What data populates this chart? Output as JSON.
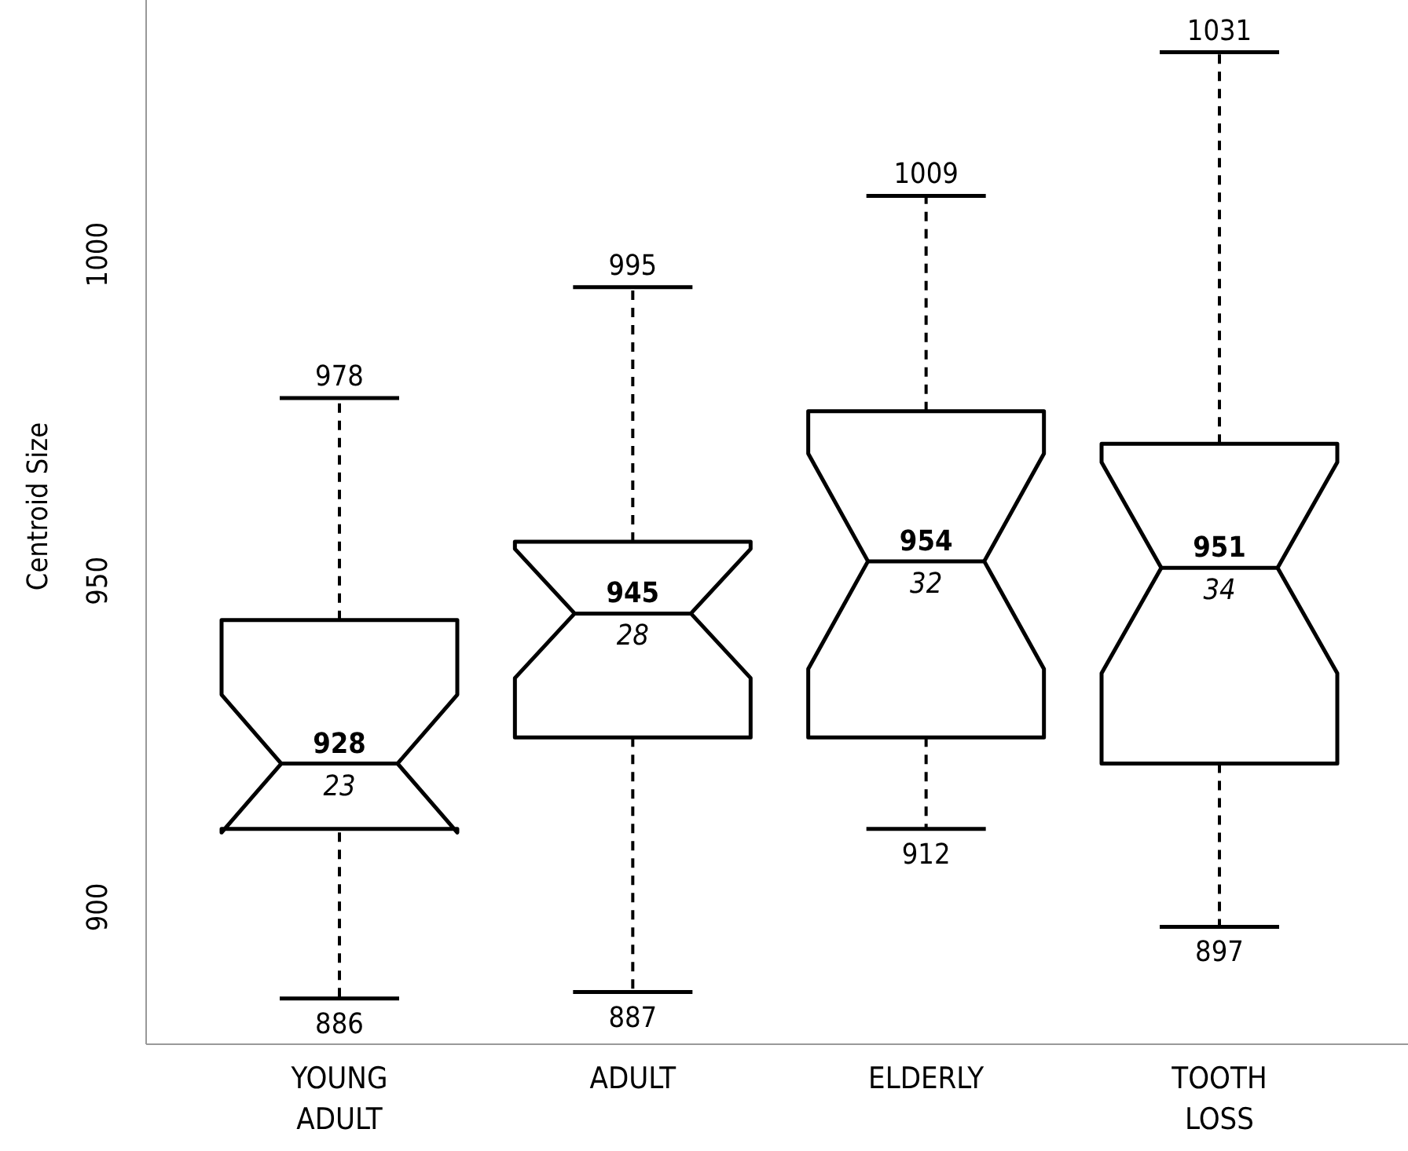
{
  "chart_data": {
    "type": "box",
    "ylabel": "Centroid Size",
    "categories": [
      "YOUNG ADULT",
      "ADULT",
      "ELDERLY",
      "TOOTH LOSS"
    ],
    "boxes": [
      {
        "low": 886,
        "q1": 912,
        "median": 922,
        "q3": 944,
        "high": 978
      },
      {
        "low": 887,
        "q1": 926,
        "median": 945,
        "q3": 956,
        "high": 995
      },
      {
        "low": 912,
        "q1": 926,
        "median": 953,
        "q3": 976,
        "high": 1009
      },
      {
        "low": 897,
        "q1": 922,
        "median": 952,
        "q3": 971,
        "high": 1031
      }
    ],
    "ylim": [
      879,
      1039
    ],
    "yticks": [
      900,
      950,
      1000
    ],
    "grid": false,
    "annotations": [
      {
        "text": "928",
        "x": "YOUNG ADULT",
        "y": 922
      },
      {
        "text": "23",
        "x": "YOUNG ADULT",
        "y": 922
      },
      {
        "text": "945",
        "x": "ADULT",
        "y": 945
      },
      {
        "text": "28",
        "x": "ADULT",
        "y": 945
      },
      {
        "text": "954",
        "x": "ELDERLY",
        "y": 953
      },
      {
        "text": "32",
        "x": "ELDERLY",
        "y": 953
      },
      {
        "text": "951",
        "x": "TOOTH LOSS",
        "y": 952
      },
      {
        "text": "34",
        "x": "TOOTH LOSS",
        "y": 952
      },
      {
        "text": "978",
        "x": "YOUNG ADULT",
        "y": 978
      },
      {
        "text": "886",
        "x": "YOUNG ADULT",
        "y": 886
      },
      {
        "text": "995",
        "x": "ADULT",
        "y": 995
      },
      {
        "text": "887",
        "x": "ADULT",
        "y": 887
      },
      {
        "text": "1009",
        "x": "ELDERLY",
        "y": 1009
      },
      {
        "text": "912",
        "x": "ELDERLY",
        "y": 912
      },
      {
        "text": "1031",
        "x": "TOOTH LOSS",
        "y": 1031
      },
      {
        "text": "897",
        "x": "TOOTH LOSS",
        "y": 897
      }
    ]
  }
}
